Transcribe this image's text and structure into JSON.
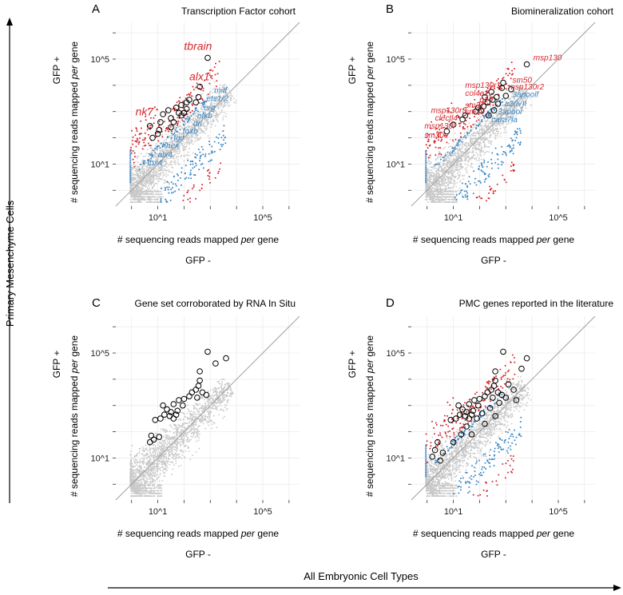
{
  "figure": {
    "y_super_label": "Primary Mesenchyme Cells",
    "x_super_label": "All Embryonic Cell Types"
  },
  "colors": {
    "background_points": "#c8c8c8",
    "up_points": "#d6282f",
    "down_points": "#3b87c4",
    "diagonal": "#9a9a9a",
    "grid": "#ebebeb",
    "highlight_circle": "#000000"
  },
  "chart_data": [
    {
      "panel": "A",
      "type": "scatter",
      "title": "Transcription Factor cohort",
      "xlabel_pre": "# sequencing reads mapped ",
      "xlabel_em": "per",
      "xlabel_post": " gene",
      "ylabel_pre": "# sequencing reads mapped ",
      "ylabel_em": "per",
      "ylabel_post": " gene",
      "xsub": "GFP -",
      "ysub": "GFP +",
      "log_scale": true,
      "x_range": [
        -0.6,
        6.4
      ],
      "y_range": [
        -0.6,
        6.4
      ],
      "x_ticks": [
        {
          "value": 1,
          "label": "10^1"
        },
        {
          "value": 5,
          "label": "10^5"
        }
      ],
      "y_ticks": [
        {
          "value": 1,
          "label": "10^1"
        },
        {
          "value": 5,
          "label": "10^5"
        }
      ],
      "grid": true,
      "diagonal": true,
      "background_cloud": true,
      "show_up": true,
      "show_down": true,
      "highlighted": [
        {
          "gene": "tbrain",
          "x": 2.9,
          "y": 5.05,
          "color": "red",
          "size": "large"
        },
        {
          "gene": "alx1",
          "x": 2.6,
          "y": 3.95,
          "color": "red",
          "size": "large"
        },
        {
          "gene": "nk7",
          "x": 0.7,
          "y": 2.45,
          "color": "red",
          "size": "large"
        },
        {
          "gene": "mitf",
          "x": 2.55,
          "y": 3.55,
          "color": "blue",
          "size": "small"
        },
        {
          "gene": "ets1/2",
          "x": 2.45,
          "y": 3.35,
          "color": "blue",
          "size": "small"
        },
        {
          "gene": "erg",
          "x": 2.1,
          "y": 3.1,
          "color": "blue",
          "size": "small"
        },
        {
          "gene": "nfkb",
          "x": 2.0,
          "y": 2.95,
          "color": "blue",
          "size": "small"
        },
        {
          "gene": "dri",
          "x": 1.9,
          "y": 2.85,
          "color": "blue",
          "size": "small"
        },
        {
          "gene": "foxb",
          "x": 1.6,
          "y": 2.6,
          "color": "blue",
          "size": "small"
        },
        {
          "gene": "tgif",
          "x": 1.5,
          "y": 2.4,
          "color": "blue",
          "size": "small"
        },
        {
          "gene": "hhex",
          "x": 1.05,
          "y": 2.3,
          "color": "blue",
          "size": "small"
        },
        {
          "gene": "alx4",
          "x": 1.0,
          "y": 2.15,
          "color": "blue",
          "size": "small"
        },
        {
          "gene": "tbx4",
          "x": 0.8,
          "y": 2.0,
          "color": "blue",
          "size": "small"
        }
      ],
      "label_positions": [
        {
          "gene": "tbrain",
          "lx": 2.0,
          "ly": 5.35
        },
        {
          "gene": "alx1",
          "lx": 2.2,
          "ly": 4.2
        },
        {
          "gene": "nk7",
          "lx": 0.15,
          "ly": 2.85
        },
        {
          "gene": "mitf",
          "lx": 3.15,
          "ly": 3.7
        },
        {
          "gene": "ets1/2",
          "lx": 2.85,
          "ly": 3.4
        },
        {
          "gene": "erg",
          "lx": 2.75,
          "ly": 3.05
        },
        {
          "gene": "nfkb",
          "lx": 2.5,
          "ly": 2.75
        },
        {
          "gene": "dri",
          "lx": 2.35,
          "ly": 2.45
        },
        {
          "gene": "foxb",
          "lx": 1.95,
          "ly": 2.15
        },
        {
          "gene": "tgif",
          "lx": 1.6,
          "ly": 1.9
        },
        {
          "gene": "hhex",
          "lx": 1.15,
          "ly": 1.6
        },
        {
          "gene": "alx4",
          "lx": 1.0,
          "ly": 1.25
        },
        {
          "gene": "tbx4",
          "lx": 0.6,
          "ly": 0.95
        }
      ],
      "extra_circles": [
        [
          1.2,
          2.9
        ],
        [
          1.4,
          3.05
        ],
        [
          1.7,
          3.15
        ],
        [
          1.9,
          3.25
        ],
        [
          2.1,
          3.35
        ],
        [
          1.1,
          2.6
        ],
        [
          1.5,
          2.75
        ],
        [
          1.8,
          2.95
        ],
        [
          2.2,
          3.45
        ]
      ]
    },
    {
      "panel": "B",
      "type": "scatter",
      "title": "Biomineralization cohort",
      "xlabel_pre": "# sequencing reads mapped ",
      "xlabel_em": "per",
      "xlabel_post": " gene",
      "ylabel_pre": "# sequencing reads mapped ",
      "ylabel_em": "per",
      "ylabel_post": " gene",
      "xsub": "GFP -",
      "ysub": "GFP +",
      "log_scale": true,
      "x_range": [
        -0.6,
        6.4
      ],
      "y_range": [
        -0.6,
        6.4
      ],
      "x_ticks": [
        {
          "value": 1,
          "label": "10^1"
        },
        {
          "value": 5,
          "label": "10^5"
        }
      ],
      "y_ticks": [
        {
          "value": 1,
          "label": "10^1"
        },
        {
          "value": 5,
          "label": "10^5"
        }
      ],
      "grid": true,
      "diagonal": true,
      "background_cloud": true,
      "show_up": true,
      "show_down": true,
      "highlighted": [
        {
          "gene": "msp130",
          "x": 3.8,
          "y": 4.8,
          "color": "red",
          "size": "small"
        },
        {
          "gene": "sm50",
          "x": 2.9,
          "y": 4.1,
          "color": "red",
          "size": "small"
        },
        {
          "gene": "msp130r2",
          "x": 2.85,
          "y": 3.9,
          "color": "red",
          "size": "small"
        },
        {
          "gene": "msp130r1",
          "x": 2.45,
          "y": 3.75,
          "color": "red",
          "size": "small"
        },
        {
          "gene": "col4a2",
          "x": 2.2,
          "y": 3.55,
          "color": "red",
          "size": "small"
        },
        {
          "gene": "p16",
          "x": 2.3,
          "y": 3.35,
          "color": "red",
          "size": "small"
        },
        {
          "gene": "3apoolf",
          "x": 3.0,
          "y": 3.6,
          "color": "blue",
          "size": "small"
        },
        {
          "gene": "a2(iv)l",
          "x": 2.7,
          "y": 3.3,
          "color": "blue",
          "size": "small"
        },
        {
          "gene": "3apool",
          "x": 2.55,
          "y": 3.05,
          "color": "blue",
          "size": "small"
        },
        {
          "gene": "cara7la",
          "x": 2.35,
          "y": 2.85,
          "color": "blue",
          "size": "small"
        },
        {
          "gene": "sm37",
          "x": 1.95,
          "y": 3.15,
          "color": "red",
          "size": "small"
        },
        {
          "gene": "sm29",
          "x": 1.85,
          "y": 3.0,
          "color": "red",
          "size": "small"
        },
        {
          "gene": "msp130r3",
          "x": 1.45,
          "y": 2.85,
          "color": "red",
          "size": "small"
        },
        {
          "gene": "clectl4",
          "x": 1.35,
          "y": 2.7,
          "color": "red",
          "size": "small"
        },
        {
          "gene": "msp130l",
          "x": 1.0,
          "y": 2.5,
          "color": "red",
          "size": "small"
        },
        {
          "gene": "sm30e",
          "x": 0.75,
          "y": 2.25,
          "color": "red",
          "size": "small"
        }
      ],
      "label_positions": [
        {
          "gene": "msp130",
          "lx": 4.05,
          "ly": 4.95
        },
        {
          "gene": "sm50",
          "lx": 3.25,
          "ly": 4.1
        },
        {
          "gene": "msp130r2",
          "lx": 3.1,
          "ly": 3.85
        },
        {
          "gene": "msp130r1",
          "lx": 1.45,
          "ly": 3.9
        },
        {
          "gene": "col4a2",
          "lx": 1.45,
          "ly": 3.6
        },
        {
          "gene": "p16",
          "lx": 2.0,
          "ly": 3.35
        },
        {
          "gene": "3apoolf",
          "lx": 3.25,
          "ly": 3.55
        },
        {
          "gene": "a2(iv)l",
          "lx": 2.95,
          "ly": 3.2
        },
        {
          "gene": "3apool",
          "lx": 2.7,
          "ly": 2.9
        },
        {
          "gene": "cara7la",
          "lx": 2.45,
          "ly": 2.6
        },
        {
          "gene": "sm37",
          "lx": 1.45,
          "ly": 3.15
        },
        {
          "gene": "sm29",
          "lx": 1.45,
          "ly": 2.9
        },
        {
          "gene": "msp130r3",
          "lx": 0.15,
          "ly": 2.95
        },
        {
          "gene": "clectl4",
          "lx": 0.3,
          "ly": 2.65
        },
        {
          "gene": "msp130l",
          "lx": -0.1,
          "ly": 2.35
        },
        {
          "gene": "sm30e",
          "lx": -0.1,
          "ly": 2.0
        }
      ],
      "extra_circles": [
        [
          2.05,
          3.05
        ],
        [
          2.15,
          3.2
        ],
        [
          2.5,
          3.45
        ],
        [
          2.65,
          3.55
        ],
        [
          3.2,
          3.85
        ]
      ]
    },
    {
      "panel": "C",
      "type": "scatter",
      "title": "Gene set corroborated by RNA In Situ",
      "xlabel_pre": "# sequencing reads mapped ",
      "xlabel_em": "per",
      "xlabel_post": " gene",
      "ylabel_pre": "# sequencing reads mapped ",
      "ylabel_em": "per",
      "ylabel_post": " gene",
      "xsub": "GFP -",
      "ysub": "GFP +",
      "log_scale": true,
      "x_range": [
        -0.6,
        6.4
      ],
      "y_range": [
        -0.6,
        6.4
      ],
      "x_ticks": [
        {
          "value": 1,
          "label": "10^1"
        },
        {
          "value": 5,
          "label": "10^5"
        }
      ],
      "y_ticks": [
        {
          "value": 1,
          "label": "10^1"
        },
        {
          "value": 5,
          "label": "10^5"
        }
      ],
      "grid": true,
      "diagonal": true,
      "background_cloud": true,
      "show_up": false,
      "show_down": false,
      "highlighted": [],
      "label_positions": [],
      "extra_circles": [
        [
          2.9,
          5.05
        ],
        [
          3.6,
          4.8
        ],
        [
          3.2,
          4.6
        ],
        [
          2.6,
          4.3
        ],
        [
          2.6,
          3.95
        ],
        [
          2.55,
          3.75
        ],
        [
          2.45,
          3.6
        ],
        [
          2.3,
          3.5
        ],
        [
          2.7,
          3.5
        ],
        [
          2.85,
          3.4
        ],
        [
          2.2,
          3.35
        ],
        [
          2.0,
          3.25
        ],
        [
          2.5,
          3.3
        ],
        [
          1.8,
          3.2
        ],
        [
          1.6,
          3.05
        ],
        [
          1.95,
          3.0
        ],
        [
          1.2,
          3.0
        ],
        [
          1.35,
          2.85
        ],
        [
          1.5,
          2.75
        ],
        [
          1.75,
          2.8
        ],
        [
          1.25,
          2.65
        ],
        [
          1.45,
          2.6
        ],
        [
          1.7,
          2.65
        ],
        [
          1.6,
          2.5
        ],
        [
          1.1,
          2.5
        ],
        [
          0.9,
          2.45
        ],
        [
          0.75,
          1.85
        ],
        [
          0.85,
          1.7
        ],
        [
          0.7,
          1.6
        ],
        [
          1.05,
          1.8
        ]
      ]
    },
    {
      "panel": "D",
      "type": "scatter",
      "title": "PMC genes reported in the literature",
      "xlabel_pre": "# sequencing reads mapped ",
      "xlabel_em": "per",
      "xlabel_post": " gene",
      "ylabel_pre": "# sequencing reads mapped ",
      "ylabel_em": "per",
      "ylabel_post": " gene",
      "xsub": "GFP -",
      "ysub": "GFP +",
      "log_scale": true,
      "x_range": [
        -0.6,
        6.4
      ],
      "y_range": [
        -0.6,
        6.4
      ],
      "x_ticks": [
        {
          "value": 1,
          "label": "10^1"
        },
        {
          "value": 5,
          "label": "10^5"
        }
      ],
      "y_ticks": [
        {
          "value": 1,
          "label": "10^1"
        },
        {
          "value": 5,
          "label": "10^5"
        }
      ],
      "grid": true,
      "diagonal": true,
      "background_cloud": true,
      "show_up": true,
      "show_down": true,
      "highlighted": [],
      "label_positions": [],
      "extra_circles": [
        [
          2.9,
          5.05
        ],
        [
          3.8,
          4.8
        ],
        [
          3.6,
          4.4
        ],
        [
          2.6,
          4.3
        ],
        [
          2.6,
          3.95
        ],
        [
          2.55,
          3.75
        ],
        [
          2.45,
          3.6
        ],
        [
          2.3,
          3.5
        ],
        [
          2.7,
          3.5
        ],
        [
          2.85,
          3.4
        ],
        [
          2.2,
          3.35
        ],
        [
          2.0,
          3.25
        ],
        [
          2.5,
          3.3
        ],
        [
          1.8,
          3.2
        ],
        [
          1.6,
          3.05
        ],
        [
          1.95,
          3.0
        ],
        [
          1.2,
          3.0
        ],
        [
          1.35,
          2.85
        ],
        [
          1.5,
          2.75
        ],
        [
          1.75,
          2.8
        ],
        [
          1.25,
          2.65
        ],
        [
          1.45,
          2.6
        ],
        [
          1.7,
          2.65
        ],
        [
          1.6,
          2.5
        ],
        [
          1.1,
          2.5
        ],
        [
          0.9,
          2.45
        ],
        [
          3.1,
          3.8
        ],
        [
          3.3,
          3.6
        ],
        [
          3.0,
          3.3
        ],
        [
          3.4,
          3.2
        ],
        [
          2.75,
          3.1
        ],
        [
          2.4,
          2.9
        ],
        [
          2.1,
          2.7
        ],
        [
          1.9,
          2.5
        ],
        [
          1.5,
          2.2
        ],
        [
          1.3,
          1.9
        ],
        [
          1.0,
          1.6
        ],
        [
          0.4,
          1.6
        ],
        [
          0.3,
          1.3
        ],
        [
          0.6,
          1.2
        ],
        [
          0.2,
          1.05
        ],
        [
          0.5,
          0.9
        ],
        [
          1.7,
          1.9
        ],
        [
          2.2,
          2.3
        ],
        [
          2.6,
          2.6
        ]
      ]
    }
  ]
}
